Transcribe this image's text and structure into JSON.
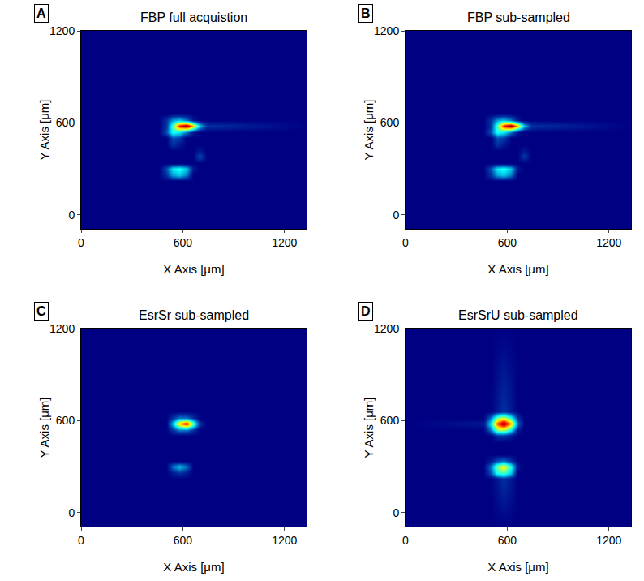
{
  "chart_data": [
    {
      "type": "heatmap",
      "title": "FBP full acquistion",
      "label": "A",
      "x_label": "X Axis [μm]",
      "y_label": "Y Axis [μm]",
      "xlim": [
        0,
        1330
      ],
      "ylim": [
        -90,
        1200
      ],
      "xticks": [
        0,
        600,
        1200
      ],
      "yticks": [
        0,
        600,
        1200
      ],
      "zlim": [
        0,
        1
      ],
      "x": [
        0,
        460,
        500,
        540,
        580,
        620,
        660,
        700,
        740,
        1330
      ],
      "y": [
        -90,
        220,
        260,
        300,
        340,
        380,
        420,
        460,
        500,
        540,
        580,
        620,
        660,
        1200
      ],
      "z": [
        [
          0,
          0,
          0,
          0,
          0,
          0,
          0,
          0,
          0,
          0
        ],
        [
          0,
          0,
          0,
          0,
          0,
          0,
          0,
          0,
          0,
          0
        ],
        [
          0,
          0,
          0.1,
          0.25,
          0.3,
          0.2,
          0,
          0,
          0,
          0
        ],
        [
          0,
          0,
          0.15,
          0.35,
          0.4,
          0.3,
          0.05,
          0,
          0,
          0
        ],
        [
          0,
          0,
          0,
          0,
          0,
          0,
          0,
          0,
          0,
          0
        ],
        [
          0,
          0,
          0,
          0,
          0,
          0,
          0,
          0.15,
          0,
          0
        ],
        [
          0,
          0,
          0,
          0,
          0,
          0,
          0,
          0.05,
          0,
          0
        ],
        [
          0,
          0,
          0,
          0.1,
          0.05,
          0,
          0,
          0,
          0,
          0
        ],
        [
          0,
          0,
          0,
          0.15,
          0.12,
          0,
          0,
          0,
          0,
          0
        ],
        [
          0,
          0,
          0.15,
          0.4,
          0.35,
          0.2,
          0.05,
          0,
          0,
          0
        ],
        [
          0,
          0,
          0.1,
          0.45,
          0.85,
          1.0,
          0.7,
          0.3,
          0.1,
          0
        ],
        [
          0,
          0,
          0.1,
          0.25,
          0.3,
          0.2,
          0.05,
          0,
          0,
          0
        ],
        [
          0,
          0,
          0,
          0,
          0,
          0,
          0,
          0,
          0,
          0
        ],
        [
          0,
          0,
          0,
          0,
          0,
          0,
          0,
          0,
          0,
          0
        ]
      ]
    },
    {
      "type": "heatmap",
      "title": "FBP sub-sampled",
      "label": "B",
      "x_label": "X Axis [μm]",
      "y_label": "Y Axis [μm]",
      "xlim": [
        0,
        1330
      ],
      "ylim": [
        -90,
        1200
      ],
      "xticks": [
        0,
        600,
        1200
      ],
      "yticks": [
        0,
        600,
        1200
      ],
      "zlim": [
        0,
        1
      ],
      "x": [
        0,
        460,
        500,
        540,
        580,
        620,
        660,
        700,
        740,
        1330
      ],
      "y": [
        -90,
        220,
        260,
        300,
        340,
        380,
        420,
        460,
        500,
        540,
        580,
        620,
        660,
        1200
      ],
      "z": [
        [
          0,
          0,
          0,
          0,
          0,
          0,
          0,
          0,
          0,
          0
        ],
        [
          0,
          0,
          0,
          0,
          0,
          0,
          0,
          0,
          0,
          0
        ],
        [
          0,
          0,
          0.1,
          0.25,
          0.3,
          0.2,
          0,
          0,
          0,
          0
        ],
        [
          0,
          0,
          0.15,
          0.35,
          0.4,
          0.3,
          0.05,
          0,
          0,
          0
        ],
        [
          0,
          0,
          0,
          0,
          0,
          0,
          0,
          0,
          0,
          0
        ],
        [
          0,
          0,
          0,
          0,
          0,
          0,
          0,
          0.12,
          0,
          0
        ],
        [
          0,
          0,
          0,
          0,
          0,
          0,
          0,
          0.05,
          0,
          0
        ],
        [
          0,
          0,
          0,
          0.1,
          0.05,
          0,
          0,
          0,
          0,
          0
        ],
        [
          0,
          0,
          0,
          0.15,
          0.12,
          0,
          0,
          0,
          0,
          0
        ],
        [
          0,
          0,
          0.15,
          0.4,
          0.35,
          0.2,
          0.05,
          0,
          0,
          0
        ],
        [
          0,
          0,
          0.1,
          0.45,
          0.85,
          1.0,
          0.7,
          0.3,
          0.1,
          0
        ],
        [
          0,
          0,
          0.1,
          0.25,
          0.3,
          0.2,
          0.05,
          0,
          0,
          0
        ],
        [
          0,
          0,
          0,
          0,
          0,
          0,
          0,
          0,
          0,
          0
        ],
        [
          0,
          0,
          0,
          0,
          0,
          0,
          0,
          0,
          0,
          0
        ]
      ]
    },
    {
      "type": "heatmap",
      "title": "EsrSr sub-sampled",
      "label": "C",
      "x_label": "X Axis [μm]",
      "y_label": "Y Axis [μm]",
      "xlim": [
        0,
        1330
      ],
      "ylim": [
        -90,
        1200
      ],
      "xticks": [
        0,
        600,
        1200
      ],
      "yticks": [
        0,
        600,
        1200
      ],
      "zlim": [
        0,
        1
      ],
      "x": [
        0,
        460,
        500,
        540,
        580,
        620,
        660,
        700,
        740,
        1330
      ],
      "y": [
        -90,
        220,
        260,
        300,
        340,
        380,
        420,
        460,
        500,
        540,
        580,
        620,
        660,
        1200
      ],
      "z": [
        [
          0,
          0,
          0,
          0,
          0,
          0,
          0,
          0,
          0,
          0
        ],
        [
          0,
          0,
          0,
          0,
          0,
          0,
          0,
          0,
          0,
          0
        ],
        [
          0,
          0,
          0,
          0.05,
          0.1,
          0.05,
          0,
          0,
          0,
          0
        ],
        [
          0,
          0,
          0,
          0.2,
          0.3,
          0.2,
          0,
          0,
          0,
          0
        ],
        [
          0,
          0,
          0,
          0,
          0,
          0,
          0,
          0,
          0,
          0
        ],
        [
          0,
          0,
          0,
          0,
          0,
          0,
          0,
          0,
          0,
          0
        ],
        [
          0,
          0,
          0,
          0,
          0,
          0,
          0,
          0,
          0,
          0
        ],
        [
          0,
          0,
          0,
          0,
          0,
          0,
          0,
          0,
          0,
          0
        ],
        [
          0,
          0,
          0,
          0,
          0,
          0,
          0,
          0,
          0,
          0
        ],
        [
          0,
          0,
          0,
          0.1,
          0.2,
          0.2,
          0.1,
          0,
          0,
          0
        ],
        [
          0,
          0,
          0,
          0.3,
          0.7,
          0.9,
          0.5,
          0.1,
          0,
          0
        ],
        [
          0,
          0,
          0,
          0.1,
          0.2,
          0.2,
          0.1,
          0,
          0,
          0
        ],
        [
          0,
          0,
          0,
          0,
          0,
          0,
          0,
          0,
          0,
          0
        ],
        [
          0,
          0,
          0,
          0,
          0,
          0,
          0,
          0,
          0,
          0
        ]
      ]
    },
    {
      "type": "heatmap",
      "title": "EsrSrU sub-sampled",
      "label": "D",
      "x_label": "X Axis [μm]",
      "y_label": "Y Axis [μm]",
      "xlim": [
        0,
        1330
      ],
      "ylim": [
        -90,
        1200
      ],
      "xticks": [
        0,
        600,
        1200
      ],
      "yticks": [
        0,
        600,
        1200
      ],
      "zlim": [
        0,
        1
      ],
      "x": [
        0,
        460,
        500,
        540,
        580,
        620,
        660,
        700,
        740,
        1330
      ],
      "y": [
        -90,
        220,
        260,
        300,
        340,
        380,
        420,
        460,
        500,
        540,
        580,
        620,
        660,
        1200
      ],
      "z": [
        [
          0,
          0,
          0,
          0,
          0,
          0,
          0,
          0,
          0,
          0
        ],
        [
          0,
          0,
          0,
          0.05,
          0.1,
          0.05,
          0,
          0,
          0,
          0
        ],
        [
          0,
          0,
          0.15,
          0.4,
          0.45,
          0.3,
          0,
          0,
          0,
          0
        ],
        [
          0,
          0,
          0.2,
          0.5,
          0.65,
          0.4,
          0.05,
          0,
          0,
          0
        ],
        [
          0,
          0,
          0.05,
          0.15,
          0.2,
          0.1,
          0,
          0,
          0,
          0
        ],
        [
          0,
          0,
          0,
          0,
          0,
          0,
          0,
          0,
          0,
          0
        ],
        [
          0,
          0,
          0,
          0,
          0,
          0,
          0,
          0,
          0,
          0
        ],
        [
          0,
          0,
          0,
          0,
          0,
          0,
          0,
          0,
          0,
          0
        ],
        [
          0,
          0,
          0,
          0.1,
          0.1,
          0.05,
          0,
          0,
          0,
          0
        ],
        [
          0,
          0,
          0.2,
          0.5,
          0.55,
          0.35,
          0.05,
          0,
          0,
          0
        ],
        [
          0,
          0.05,
          0.35,
          0.8,
          1.0,
          0.7,
          0.2,
          0,
          0,
          0
        ],
        [
          0,
          0,
          0.2,
          0.5,
          0.6,
          0.4,
          0.1,
          0,
          0,
          0
        ],
        [
          0,
          0,
          0,
          0.05,
          0.1,
          0.05,
          0,
          0,
          0,
          0
        ],
        [
          0,
          0,
          0,
          0,
          0,
          0,
          0,
          0,
          0,
          0
        ]
      ]
    }
  ]
}
